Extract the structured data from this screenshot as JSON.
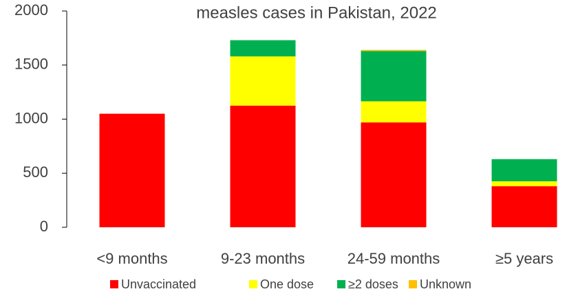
{
  "chart_data": {
    "type": "stacked_bar",
    "title": "measles cases in Pakistan, 2022",
    "categories": [
      "<9 months",
      "9-23 months",
      "24-59 months",
      "≥5 years"
    ],
    "series": [
      {
        "name": "Unvaccinated",
        "color": "#ff0000",
        "values": [
          1050,
          1125,
          970,
          380
        ]
      },
      {
        "name": "One dose",
        "color": "#ffff00",
        "values": [
          0,
          455,
          195,
          45
        ]
      },
      {
        "name": "≥2 doses",
        "color": "#00b050",
        "values": [
          0,
          150,
          465,
          205
        ]
      },
      {
        "name": "Unknown",
        "color": "#ffc000",
        "values": [
          0,
          0,
          10,
          0
        ]
      }
    ],
    "ylim": [
      0,
      2000
    ],
    "yticks": [
      0,
      500,
      1000,
      1500,
      2000
    ],
    "grid": false,
    "legend": "bottom"
  }
}
